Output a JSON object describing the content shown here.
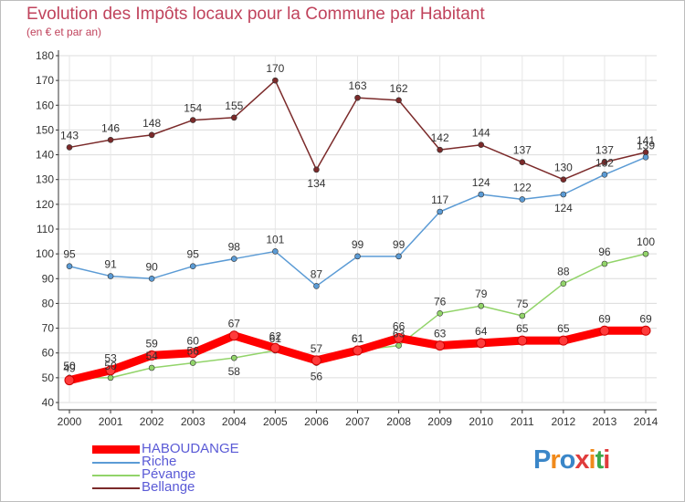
{
  "title": "Evolution des Impôts locaux pour la Commune par Habitant",
  "subtitle": "(en € et par an)",
  "logo": {
    "text": "Proxiti",
    "letters": [
      "P",
      "r",
      "o",
      "x",
      "i",
      "t",
      "i"
    ],
    "colors": [
      "#3a86c8",
      "#f08a1c",
      "#3a86c8",
      "#e03c3c",
      "#f08a1c",
      "#3aa84a",
      "#e03c3c"
    ]
  },
  "chart_data": {
    "type": "line",
    "x": [
      "2000",
      "2001",
      "2002",
      "2003",
      "2004",
      "2005",
      "2006",
      "2007",
      "2008",
      "2009",
      "2010",
      "2011",
      "2012",
      "2013",
      "2014"
    ],
    "ylim": [
      40,
      180
    ],
    "yticks": [
      40,
      50,
      60,
      70,
      80,
      90,
      100,
      110,
      120,
      130,
      140,
      150,
      160,
      170,
      180
    ],
    "grid": true,
    "legend_position": "bottom-left",
    "series": [
      {
        "name": "HABOUDANGE",
        "color": "#ff0000",
        "values": [
          49,
          53,
          59,
          60,
          67,
          62,
          57,
          61,
          66,
          63,
          64,
          65,
          65,
          69,
          69
        ]
      },
      {
        "name": "Riche",
        "color": "#5b9bd5",
        "values": [
          95,
          91,
          90,
          95,
          98,
          101,
          87,
          99,
          99,
          117,
          124,
          122,
          124,
          132,
          139
        ]
      },
      {
        "name": "Pévange",
        "color": "#92d46a",
        "values": [
          50,
          50,
          54,
          56,
          58,
          61,
          56,
          61,
          63,
          76,
          79,
          75,
          88,
          96,
          100
        ]
      },
      {
        "name": "Bellange",
        "color": "#7b2a2a",
        "values": [
          143,
          146,
          148,
          154,
          155,
          170,
          134,
          163,
          162,
          142,
          144,
          137,
          130,
          137,
          141
        ]
      }
    ]
  }
}
